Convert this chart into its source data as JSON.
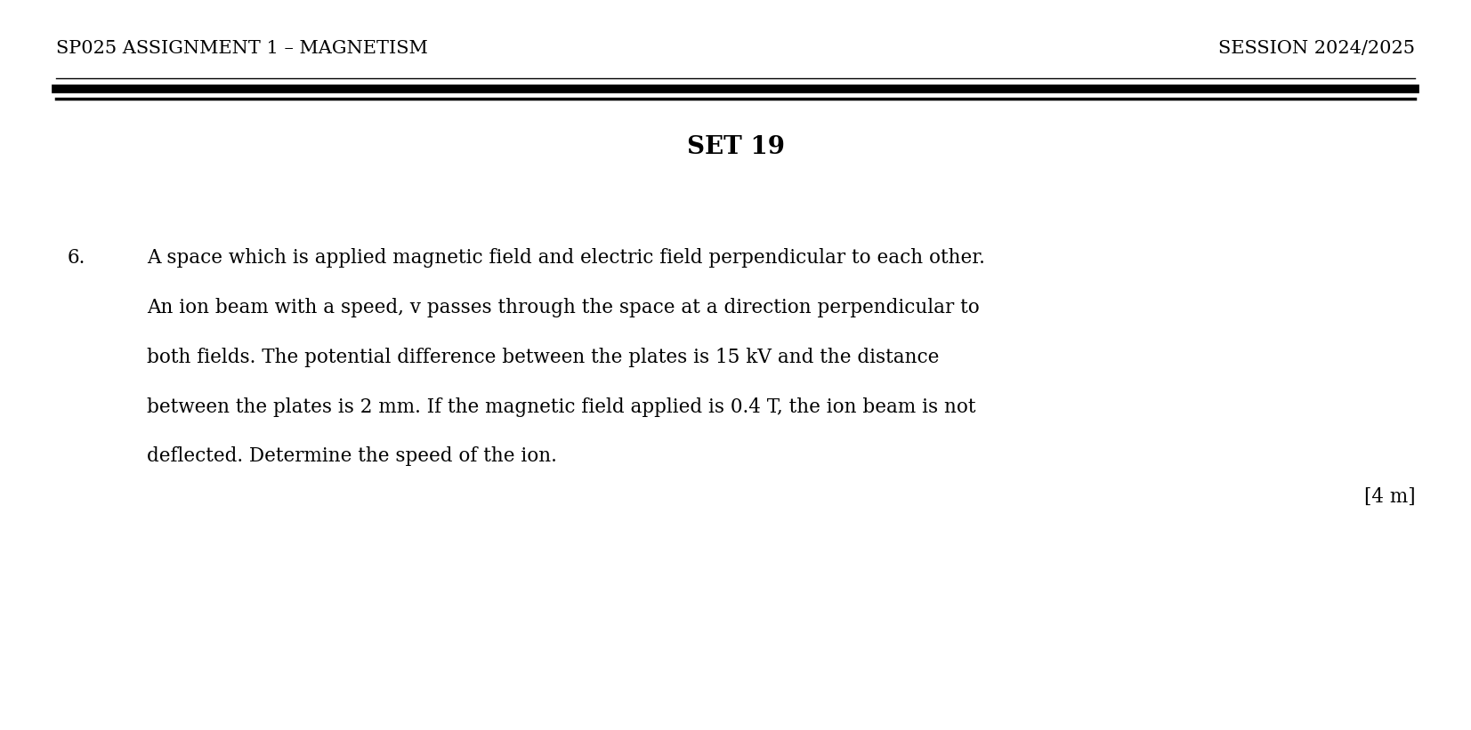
{
  "header_left": "SP025 ASSIGNMENT 1 – MAGNETISM",
  "header_right": "SESSION 2024/2025",
  "set_title": "SET 19",
  "question_number": "6.",
  "question_lines": [
    "A space which is applied magnetic field and electric field perpendicular to each other.",
    "An ion beam with a speed, v passes through the space at a direction perpendicular to",
    "both fields. The potential difference between the plates is 15 kV and the distance",
    "between the plates is 2 mm. If the magnetic field applied is 0.4 T, the ion beam is not",
    "deflected. Determine the speed of the ion."
  ],
  "marks": "[4 m]",
  "bg_color": "#ffffff",
  "text_color": "#000000",
  "header_fontsize": 15,
  "set_title_fontsize": 20,
  "question_fontsize": 15.5,
  "marks_fontsize": 15.5
}
